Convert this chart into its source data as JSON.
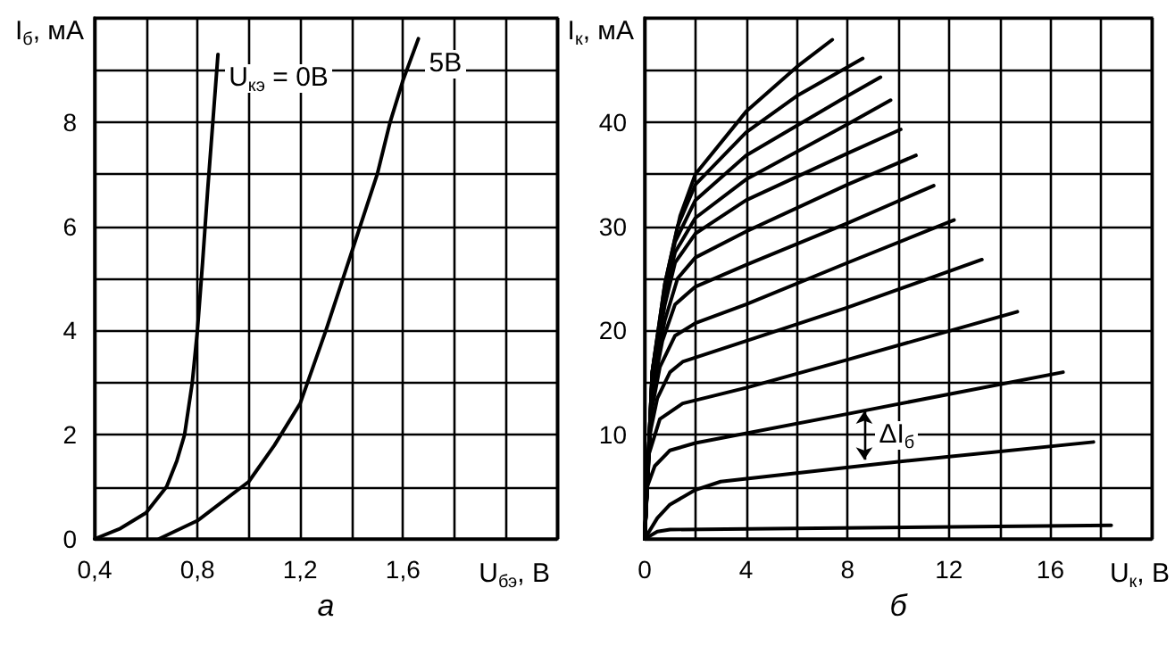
{
  "chart_data": [
    {
      "type": "line",
      "xlabel": "U$_{бэ}$, В",
      "ylabel": "I$_{б}$, мА",
      "xlim": [
        0.4,
        2.2
      ],
      "ylim": [
        0,
        10
      ],
      "xticks": [
        {
          "value": 0.4,
          "label": "0,4"
        },
        {
          "value": 0.6,
          "label": null
        },
        {
          "value": 0.8,
          "label": "0,8"
        },
        {
          "value": 1.0,
          "label": null
        },
        {
          "value": 1.2,
          "label": "1,2"
        },
        {
          "value": 1.4,
          "label": null
        },
        {
          "value": 1.6,
          "label": "1,6"
        },
        {
          "value": 1.8,
          "label": null
        },
        {
          "value": 2.0,
          "label": null
        }
      ],
      "yticks": [
        0,
        {
          "value": 1,
          "label": null
        },
        2,
        {
          "value": 3,
          "label": null
        },
        4,
        {
          "value": 5,
          "label": null
        },
        6,
        {
          "value": 7,
          "label": null
        },
        8,
        {
          "value": 9,
          "label": null
        }
      ],
      "grid": true,
      "marker": "none",
      "line_style": "solid",
      "series": [
        {
          "name": "U$_{кэ}$ = 0В",
          "color": "#000000",
          "x": [
            0.4,
            0.5,
            0.6,
            0.68,
            0.72,
            0.75,
            0.78,
            0.8,
            0.82,
            0.84,
            0.86,
            0.88
          ],
          "values": [
            0,
            0.2,
            0.5,
            1,
            1.5,
            2,
            3,
            4,
            5.3,
            6.7,
            8,
            9.3
          ]
        },
        {
          "name": "5В",
          "color": "#000000",
          "x": [
            0.65,
            0.8,
            1.0,
            1.1,
            1.2,
            1.3,
            1.4,
            1.5,
            1.55,
            1.6,
            1.66
          ],
          "values": [
            0,
            0.35,
            1.1,
            1.8,
            2.6,
            4,
            5.5,
            7,
            8,
            8.8,
            9.6
          ]
        }
      ],
      "annotations": [
        "а"
      ]
    },
    {
      "type": "line",
      "xlabel": "U$_{к}$, В",
      "ylabel": "I$_{к}$, мА",
      "xlim": [
        0,
        20
      ],
      "ylim": [
        0,
        50
      ],
      "xticks": [
        0,
        {
          "value": 2,
          "label": null
        },
        4,
        {
          "value": 6,
          "label": null
        },
        8,
        {
          "value": 10,
          "label": null
        },
        12,
        {
          "value": 14,
          "label": null
        },
        16,
        {
          "value": 18,
          "label": null
        }
      ],
      "yticks": [
        {
          "value": 0,
          "label": null
        },
        {
          "value": 5,
          "label": null
        },
        10,
        {
          "value": 15,
          "label": null
        },
        20,
        {
          "value": 25,
          "label": null
        },
        30,
        {
          "value": 35,
          "label": null
        },
        40,
        {
          "value": 45,
          "label": null
        }
      ],
      "grid": true,
      "marker": "none",
      "line_style": "solid",
      "series": [
        {
          "color": "#000000",
          "x": [
            0,
            0.5,
            1,
            18.4
          ],
          "values": [
            0,
            0.7,
            0.9,
            1.3
          ]
        },
        {
          "color": "#000000",
          "x": [
            0,
            0.5,
            1,
            2,
            3,
            10,
            17.7
          ],
          "values": [
            0,
            2,
            3.3,
            4.7,
            5.5,
            7.4,
            9.3
          ]
        },
        {
          "color": "#000000",
          "x": [
            0,
            0.1,
            0.4,
            1,
            2,
            8,
            16.5
          ],
          "values": [
            0,
            5,
            7,
            8.5,
            9.2,
            12,
            16
          ]
        },
        {
          "color": "#000000",
          "x": [
            0,
            0.15,
            0.6,
            1.5,
            4,
            8,
            14.7
          ],
          "values": [
            0,
            8,
            11.5,
            13,
            14.5,
            17.2,
            21.8
          ]
        },
        {
          "color": "#000000",
          "x": [
            0,
            0.2,
            0.5,
            1,
            1.5,
            4,
            8,
            13.3
          ],
          "values": [
            0,
            10,
            13.5,
            16,
            17,
            19,
            22.2,
            26.8
          ]
        },
        {
          "color": "#000000",
          "x": [
            0,
            0.25,
            0.6,
            1.2,
            2,
            4,
            8,
            12.2
          ],
          "values": [
            0,
            12,
            16.5,
            19.5,
            20.7,
            22.5,
            26.5,
            30.6
          ]
        },
        {
          "color": "#000000",
          "x": [
            0,
            0.3,
            0.7,
            1.2,
            2,
            4,
            8,
            11.4
          ],
          "values": [
            0,
            14,
            19,
            22.5,
            24.2,
            26.3,
            30.3,
            33.9
          ]
        },
        {
          "color": "#000000",
          "x": [
            0,
            0.3,
            0.8,
            1.3,
            2,
            4,
            8,
            10.7
          ],
          "values": [
            0,
            15,
            21,
            25,
            27,
            29.5,
            34,
            36.8
          ]
        },
        {
          "color": "#000000",
          "x": [
            0,
            0.3,
            0.8,
            1.2,
            2,
            4,
            8,
            10.1
          ],
          "values": [
            0,
            15.5,
            22.5,
            26.5,
            29.3,
            32.5,
            37,
            39.3
          ]
        },
        {
          "color": "#000000",
          "x": [
            0,
            0.3,
            0.8,
            1.2,
            2,
            4,
            8,
            9.7
          ],
          "values": [
            0,
            16,
            23.5,
            27.5,
            30.8,
            34.5,
            39.8,
            42.1
          ]
        },
        {
          "color": "#000000",
          "x": [
            0,
            0.3,
            0.8,
            1.2,
            2,
            4,
            8,
            9.3
          ],
          "values": [
            0,
            16,
            24,
            28.5,
            32.5,
            36.8,
            42.5,
            44.3
          ]
        },
        {
          "color": "#000000",
          "x": [
            0,
            0.3,
            0.8,
            1.3,
            2,
            4,
            6,
            8.6
          ],
          "values": [
            0,
            16,
            24.5,
            30,
            34,
            39,
            42.5,
            46.1
          ]
        },
        {
          "color": "#000000",
          "x": [
            0,
            0.3,
            0.8,
            1.4,
            2,
            4,
            6,
            7.4
          ],
          "values": [
            0,
            16,
            24.5,
            31,
            35,
            41,
            45.3,
            47.9
          ]
        }
      ],
      "annotations": [
        "ΔI$_{б}$",
        "б"
      ]
    }
  ]
}
